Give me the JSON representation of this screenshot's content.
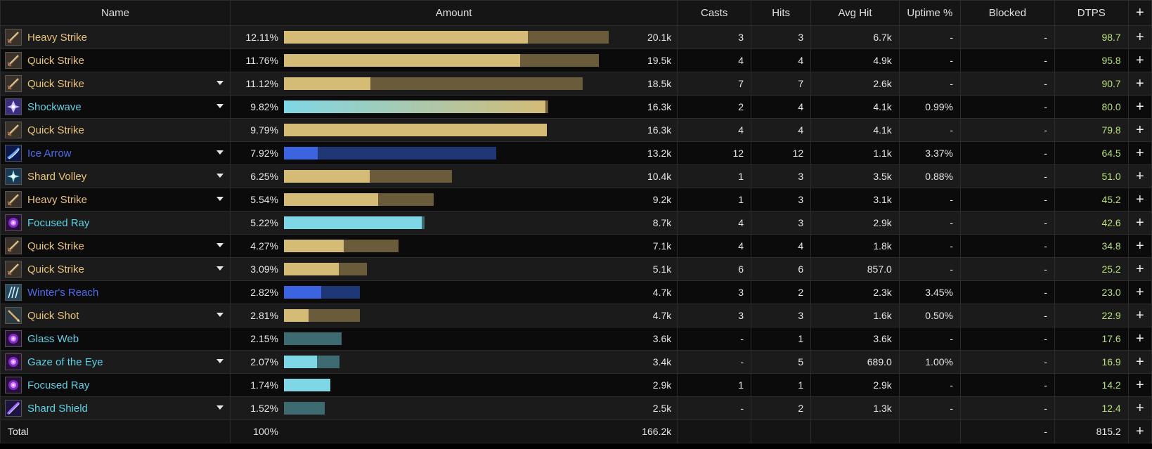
{
  "header": {
    "name": "Name",
    "amount": "Amount",
    "casts": "Casts",
    "hits": "Hits",
    "avg_hit": "Avg Hit",
    "uptime": "Uptime %",
    "blocked": "Blocked",
    "dtps": "DTPS",
    "plus": "+"
  },
  "colors": {
    "phys_text": "#e8c27a",
    "phys_fill": "#d4bb76",
    "phys_total": "#6a5b3b",
    "frost_text": "#5fd1e6",
    "frost_fill": "#7fd7e6",
    "frost_total": "#3e6a72",
    "arcane_text": "#4d6cf0",
    "arcane_fill": "#3c64e0",
    "arcane_total": "#1f3775",
    "dtps_text": "#b9e07a"
  },
  "rows": [
    {
      "name": "Heavy Strike",
      "school": "phys",
      "icon": "sword-strike-icon",
      "expandable": false,
      "percent": "12.11%",
      "amount": "20.1k",
      "total_fraction": 1.0,
      "fill_fraction": 0.75,
      "casts": "3",
      "hits": "3",
      "avg_hit": "6.7k",
      "uptime": "-",
      "blocked": "-",
      "dtps": "98.7"
    },
    {
      "name": "Quick Strike",
      "school": "phys",
      "icon": "sword-strike-icon",
      "expandable": false,
      "percent": "11.76%",
      "amount": "19.5k",
      "total_fraction": 0.97,
      "fill_fraction": 0.75,
      "casts": "4",
      "hits": "4",
      "avg_hit": "4.9k",
      "uptime": "-",
      "blocked": "-",
      "dtps": "95.8"
    },
    {
      "name": "Quick Strike",
      "school": "phys",
      "icon": "sword-strike-icon",
      "expandable": true,
      "percent": "11.12%",
      "amount": "18.5k",
      "total_fraction": 0.92,
      "fill_fraction": 0.29,
      "casts": "7",
      "hits": "7",
      "avg_hit": "2.6k",
      "uptime": "-",
      "blocked": "-",
      "dtps": "90.7"
    },
    {
      "name": "Shockwave",
      "school": "frost-gradient",
      "icon": "crystal-burst-icon",
      "expandable": true,
      "percent": "9.82%",
      "amount": "16.3k",
      "total_fraction": 0.814,
      "fill_fraction": 0.99,
      "casts": "2",
      "hits": "4",
      "avg_hit": "4.1k",
      "uptime": "0.99%",
      "blocked": "-",
      "dtps": "80.0"
    },
    {
      "name": "Quick Strike",
      "school": "phys",
      "icon": "sword-strike-icon",
      "expandable": false,
      "percent": "9.79%",
      "amount": "16.3k",
      "total_fraction": 0.81,
      "fill_fraction": 1.0,
      "casts": "4",
      "hits": "4",
      "avg_hit": "4.1k",
      "uptime": "-",
      "blocked": "-",
      "dtps": "79.8"
    },
    {
      "name": "Ice Arrow",
      "school": "arcane",
      "icon": "ice-arrow-icon",
      "expandable": true,
      "percent": "7.92%",
      "amount": "13.2k",
      "total_fraction": 0.654,
      "fill_fraction": 0.16,
      "casts": "12",
      "hits": "12",
      "avg_hit": "1.1k",
      "uptime": "3.37%",
      "blocked": "-",
      "dtps": "64.5"
    },
    {
      "name": "Shard Volley",
      "school": "phys",
      "icon": "shard-volley-icon",
      "expandable": true,
      "percent": "6.25%",
      "amount": "10.4k",
      "total_fraction": 0.517,
      "fill_fraction": 0.51,
      "casts": "1",
      "hits": "3",
      "avg_hit": "3.5k",
      "uptime": "0.88%",
      "blocked": "-",
      "dtps": "51.0"
    },
    {
      "name": "Heavy Strike",
      "school": "phys",
      "icon": "sword-strike-icon",
      "expandable": true,
      "percent": "5.54%",
      "amount": "9.2k",
      "total_fraction": 0.46,
      "fill_fraction": 0.63,
      "casts": "1",
      "hits": "3",
      "avg_hit": "3.1k",
      "uptime": "-",
      "blocked": "-",
      "dtps": "45.2"
    },
    {
      "name": "Focused Ray",
      "school": "frost",
      "icon": "void-orb-icon",
      "expandable": false,
      "percent": "5.22%",
      "amount": "8.7k",
      "total_fraction": 0.432,
      "fill_fraction": 0.98,
      "casts": "4",
      "hits": "3",
      "avg_hit": "2.9k",
      "uptime": "-",
      "blocked": "-",
      "dtps": "42.6"
    },
    {
      "name": "Quick Strike",
      "school": "phys",
      "icon": "sword-strike-icon",
      "expandable": true,
      "percent": "4.27%",
      "amount": "7.1k",
      "total_fraction": 0.353,
      "fill_fraction": 0.52,
      "casts": "4",
      "hits": "4",
      "avg_hit": "1.8k",
      "uptime": "-",
      "blocked": "-",
      "dtps": "34.8"
    },
    {
      "name": "Quick Strike",
      "school": "phys",
      "icon": "sword-strike-icon",
      "expandable": true,
      "percent": "3.09%",
      "amount": "5.1k",
      "total_fraction": 0.255,
      "fill_fraction": 0.66,
      "casts": "6",
      "hits": "6",
      "avg_hit": "857.0",
      "uptime": "-",
      "blocked": "-",
      "dtps": "25.2"
    },
    {
      "name": "Winter's Reach",
      "school": "arcane",
      "icon": "frost-claw-icon",
      "expandable": false,
      "percent": "2.82%",
      "amount": "4.7k",
      "total_fraction": 0.234,
      "fill_fraction": 0.49,
      "casts": "3",
      "hits": "2",
      "avg_hit": "2.3k",
      "uptime": "3.45%",
      "blocked": "-",
      "dtps": "23.0"
    },
    {
      "name": "Quick Shot",
      "school": "phys",
      "icon": "arrow-shot-icon",
      "expandable": true,
      "percent": "2.81%",
      "amount": "4.7k",
      "total_fraction": 0.234,
      "fill_fraction": 0.32,
      "casts": "3",
      "hits": "3",
      "avg_hit": "1.6k",
      "uptime": "0.50%",
      "blocked": "-",
      "dtps": "22.9"
    },
    {
      "name": "Glass Web",
      "school": "frost",
      "icon": "void-orb-icon",
      "expandable": false,
      "percent": "2.15%",
      "amount": "3.6k",
      "total_fraction": 0.178,
      "fill_fraction": 0.0,
      "casts": "-",
      "hits": "1",
      "avg_hit": "3.6k",
      "uptime": "-",
      "blocked": "-",
      "dtps": "17.6"
    },
    {
      "name": "Gaze of the Eye",
      "school": "frost",
      "icon": "void-orb-icon",
      "expandable": true,
      "percent": "2.07%",
      "amount": "3.4k",
      "total_fraction": 0.17,
      "fill_fraction": 0.59,
      "casts": "-",
      "hits": "5",
      "avg_hit": "689.0",
      "uptime": "1.00%",
      "blocked": "-",
      "dtps": "16.9"
    },
    {
      "name": "Focused Ray",
      "school": "frost",
      "icon": "void-orb-icon",
      "expandable": false,
      "percent": "1.74%",
      "amount": "2.9k",
      "total_fraction": 0.143,
      "fill_fraction": 1.0,
      "casts": "1",
      "hits": "1",
      "avg_hit": "2.9k",
      "uptime": "-",
      "blocked": "-",
      "dtps": "14.2"
    },
    {
      "name": "Shard Shield",
      "school": "frost",
      "icon": "void-streak-icon",
      "expandable": true,
      "percent": "1.52%",
      "amount": "2.5k",
      "total_fraction": 0.126,
      "fill_fraction": 0.0,
      "casts": "-",
      "hits": "2",
      "avg_hit": "1.3k",
      "uptime": "-",
      "blocked": "-",
      "dtps": "12.4"
    }
  ],
  "total": {
    "label": "Total",
    "percent": "100%",
    "amount": "166.2k",
    "blocked": "-",
    "dtps": "815.2"
  }
}
